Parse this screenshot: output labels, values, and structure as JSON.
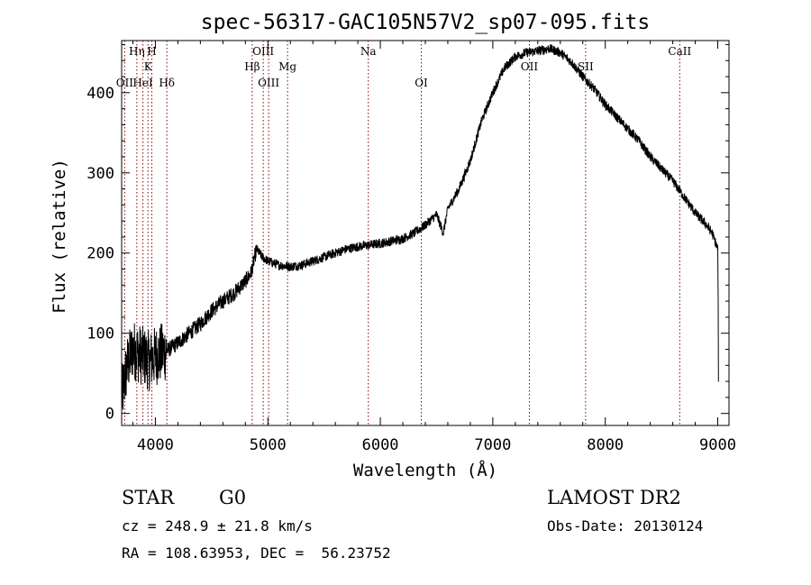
{
  "chart_data": {
    "type": "line",
    "title": "spec-56317-GAC105N57V2_sp07-095.fits",
    "xlabel": "Wavelength (Å)",
    "ylabel": "Flux (relative)",
    "xlim": [
      3700,
      9100
    ],
    "ylim": [
      -15,
      465
    ],
    "xticks": [
      4000,
      5000,
      6000,
      7000,
      8000,
      9000
    ],
    "yticks": [
      0,
      100,
      200,
      300,
      400
    ],
    "grid": false,
    "line_color": "#000000",
    "marker_color": "#8b0000",
    "spectrum": {
      "x": [
        3700,
        3750,
        3800,
        3850,
        3900,
        3950,
        4000,
        4050,
        4100,
        4200,
        4300,
        4400,
        4500,
        4600,
        4700,
        4800,
        4850,
        4900,
        4950,
        5000,
        5100,
        5200,
        5300,
        5400,
        5500,
        5600,
        5700,
        5800,
        5900,
        6000,
        6100,
        6200,
        6300,
        6400,
        6500,
        6560,
        6600,
        6700,
        6800,
        6900,
        7000,
        7100,
        7200,
        7300,
        7400,
        7500,
        7600,
        7700,
        7800,
        7900,
        8000,
        8100,
        8200,
        8300,
        8400,
        8500,
        8600,
        8700,
        8800,
        8900,
        8950,
        9000,
        9010
      ],
      "y": [
        20,
        60,
        80,
        75,
        70,
        65,
        72,
        75,
        78,
        88,
        100,
        112,
        128,
        140,
        150,
        165,
        175,
        205,
        195,
        190,
        185,
        183,
        185,
        190,
        195,
        200,
        205,
        208,
        210,
        212,
        215,
        218,
        225,
        235,
        248,
        225,
        255,
        280,
        315,
        365,
        400,
        430,
        445,
        450,
        452,
        455,
        450,
        438,
        420,
        405,
        385,
        370,
        355,
        340,
        320,
        305,
        290,
        270,
        250,
        235,
        225,
        205,
        40
      ]
    },
    "lines": [
      {
        "label": "OII",
        "x": 3727,
        "row": 3
      },
      {
        "label": "Hη",
        "x": 3835,
        "row": 1
      },
      {
        "label": "HeI",
        "x": 3889,
        "row": 3
      },
      {
        "label": "K",
        "x": 3934,
        "row": 2
      },
      {
        "label": "H",
        "x": 3968,
        "row": 1
      },
      {
        "label": "Hδ",
        "x": 4102,
        "row": 3
      },
      {
        "label": "Hβ",
        "x": 4861,
        "row": 2
      },
      {
        "label": "OIII",
        "x": 4959,
        "row": 1
      },
      {
        "label": "OIII",
        "x": 5007,
        "row": 3
      },
      {
        "label": "Mg",
        "x": 5175,
        "row": 2
      },
      {
        "label": "Na",
        "x": 5893,
        "row": 1
      },
      {
        "label": "OI",
        "x": 6364,
        "row": 3
      },
      {
        "label": "OII",
        "x": 7325,
        "row": 2
      },
      {
        "label": "SII",
        "x": 7825,
        "row": 2
      },
      {
        "label": "CaII",
        "x": 8662,
        "row": 1
      }
    ]
  },
  "info": {
    "class": "STAR",
    "subclass": "G0",
    "survey": "LAMOST DR2",
    "cz": "cz = 248.9 ± 21.8 km/s",
    "obs_date": "Obs-Date: 20130124",
    "coords": "RA = 108.63953, DEC =  56.23752"
  }
}
